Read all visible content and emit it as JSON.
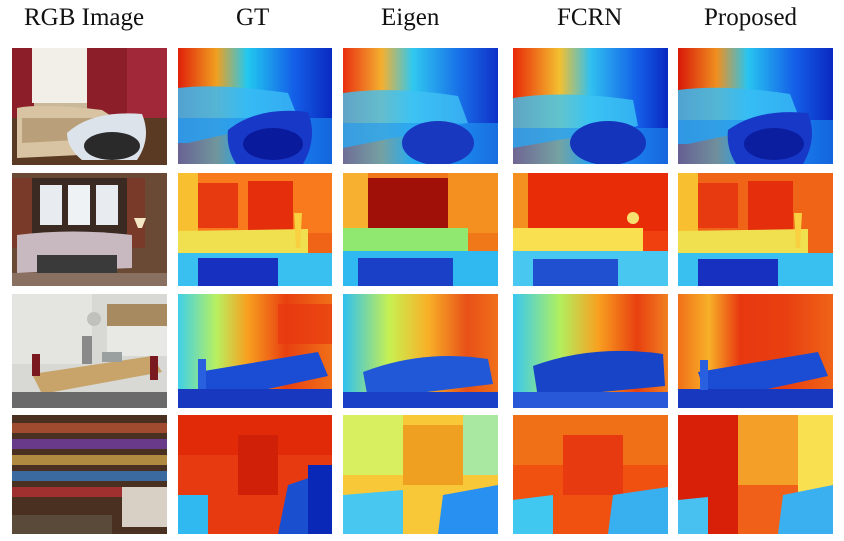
{
  "columns": [
    "RGB Image",
    "GT",
    "Eigen",
    "FCRN",
    "Proposed"
  ],
  "rows": 4,
  "colors": {
    "depth_near": "#0a1fb4",
    "depth_mid": "#22c8f0",
    "depth_mid2": "#f0e840",
    "depth_far": "#e0200a",
    "depth_very_far": "#7a0000"
  }
}
